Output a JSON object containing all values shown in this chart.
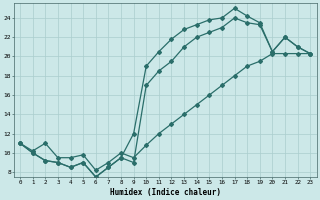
{
  "xlabel": "Humidex (Indice chaleur)",
  "bg_color": "#cce8e8",
  "grid_color": "#aacece",
  "line_color": "#2a6e6a",
  "xlim": [
    -0.5,
    23.5
  ],
  "ylim": [
    7.5,
    25.5
  ],
  "xticks": [
    0,
    1,
    2,
    3,
    4,
    5,
    6,
    7,
    8,
    9,
    10,
    11,
    12,
    13,
    14,
    15,
    16,
    17,
    18,
    19,
    20,
    21,
    22,
    23
  ],
  "yticks": [
    8,
    10,
    12,
    14,
    16,
    18,
    20,
    22,
    24
  ],
  "line1_x": [
    0,
    1,
    2,
    3,
    4,
    5,
    6,
    7,
    8,
    9,
    10,
    11,
    12,
    13,
    14,
    15,
    16,
    17,
    18,
    19,
    20,
    21,
    22,
    23
  ],
  "line1_y": [
    11,
    10,
    9.2,
    9,
    8.5,
    9,
    7.5,
    8.5,
    9.5,
    12,
    19,
    20.5,
    21.8,
    22.8,
    23.3,
    23.8,
    24,
    25,
    24.2,
    23.5,
    20.5,
    22,
    21,
    20.3
  ],
  "line2_x": [
    0,
    1,
    2,
    3,
    4,
    5,
    6,
    7,
    8,
    9,
    10,
    11,
    12,
    13,
    14,
    15,
    16,
    17,
    18,
    19,
    20,
    21,
    22,
    23
  ],
  "line2_y": [
    11,
    10,
    9.2,
    9,
    8.5,
    9,
    7.5,
    8.5,
    9.5,
    9,
    17,
    18.5,
    19.5,
    21,
    22,
    22.5,
    23,
    24,
    23.5,
    23.3,
    20.5,
    22,
    21,
    20.3
  ],
  "line3_x": [
    0,
    1,
    2,
    3,
    4,
    5,
    6,
    7,
    8,
    9,
    10,
    11,
    12,
    13,
    14,
    15,
    16,
    17,
    18,
    19,
    20,
    21,
    22,
    23
  ],
  "line3_y": [
    11,
    10.2,
    11,
    9.5,
    9.5,
    9.8,
    8.2,
    9,
    10,
    9.5,
    10.8,
    12,
    13,
    14,
    15,
    16,
    17,
    18,
    19,
    19.5,
    20.3,
    20.3,
    20.3,
    20.3
  ]
}
